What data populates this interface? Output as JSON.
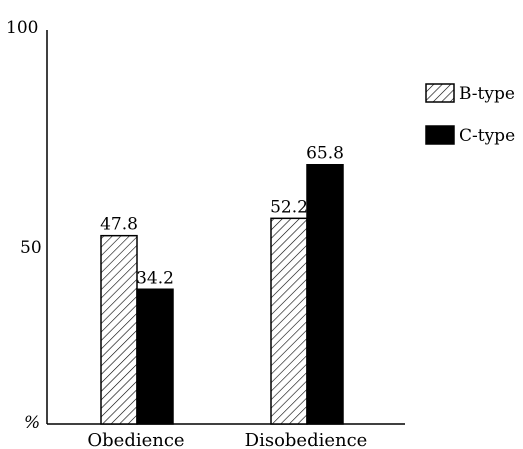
{
  "chart_data": {
    "type": "bar",
    "categories": [
      "Obedience",
      "Disobedience"
    ],
    "series": [
      {
        "name": "B-type",
        "values": [
          47.8,
          52.2
        ],
        "pattern": "hatched"
      },
      {
        "name": "C-type",
        "values": [
          34.2,
          65.8
        ],
        "pattern": "solid"
      }
    ],
    "ylim": [
      0,
      100
    ],
    "y_ticks": [
      "100",
      "50"
    ],
    "y_unit_label": "%",
    "legend_position": "right",
    "colors": {
      "solid": "#000000",
      "outline": "#000000",
      "background": "#ffffff"
    }
  }
}
